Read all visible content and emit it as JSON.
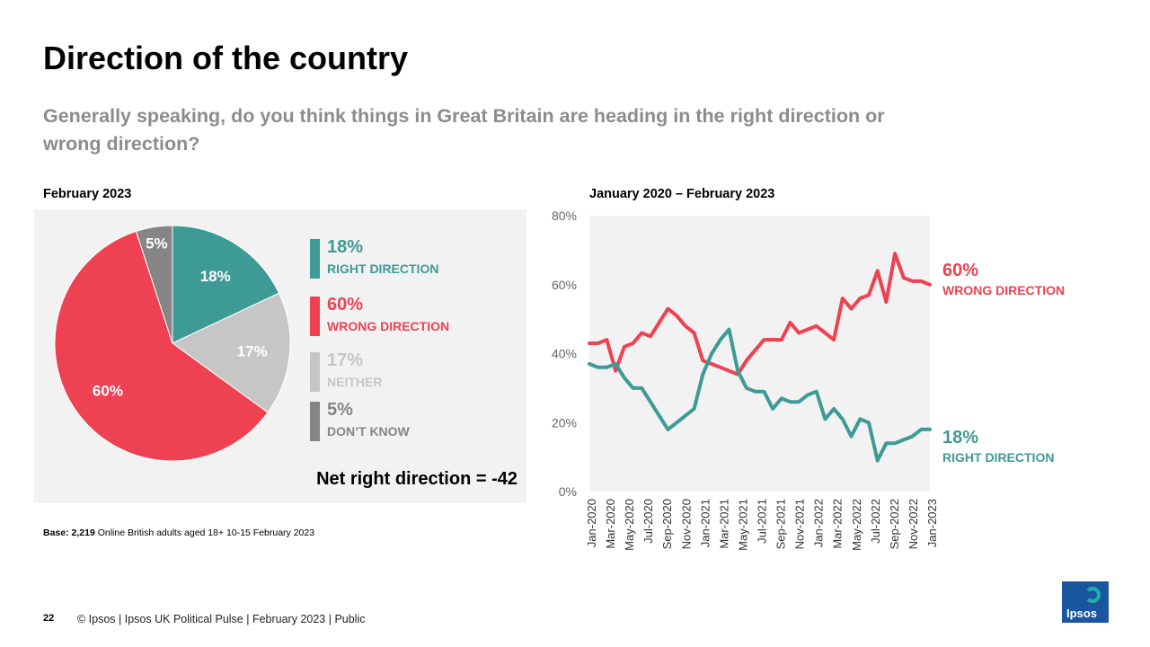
{
  "title": "Direction of the country",
  "subtitle": "Generally speaking, do you think things in Great Britain are heading in the right direction or wrong direction?",
  "colors": {
    "right": "#3e9a96",
    "wrong": "#ee4151",
    "neither": "#c6c6c6",
    "dont_know": "#858585"
  },
  "chart_data": [
    {
      "type": "pie",
      "title": "February 2023",
      "slices": [
        {
          "key": "right",
          "pct_label": "18%",
          "label": "RIGHT DIRECTION",
          "value": 18
        },
        {
          "key": "neither",
          "pct_label": "17%",
          "label": "NEITHER",
          "value": 17
        },
        {
          "key": "wrong",
          "pct_label": "60%",
          "label": "WRONG DIRECTION",
          "value": 60
        },
        {
          "key": "dont_know",
          "pct_label": "5%",
          "label": "DON’T KNOW",
          "value": 5
        }
      ],
      "legend_placement": "right"
    },
    {
      "type": "line",
      "title": "January 2020 – February 2023",
      "ylim": [
        0,
        80
      ],
      "y_ticks": [
        "0%",
        "20%",
        "40%",
        "60%",
        "80%"
      ],
      "x_tick_labels": [
        "Jan-2020",
        "Mar-2020",
        "May-2020",
        "Jul-2020",
        "Sep-2020",
        "Nov-2020",
        "Jan-2021",
        "Mar-2021",
        "May-2021",
        "Jul-2021",
        "Sep-2021",
        "Nov-2021",
        "Jan-2022",
        "Mar-2022",
        "May-2022",
        "Jul-2022",
        "Sep-2022",
        "Nov-2022",
        "Jan-2023"
      ],
      "series": [
        {
          "key": "wrong",
          "end_pct": "60%",
          "end_label": "WRONG DIRECTION",
          "values": [
            43,
            43,
            44,
            35,
            42,
            43,
            46,
            45,
            49,
            53,
            51,
            48,
            46,
            38,
            37,
            36,
            35,
            34,
            38,
            41,
            44,
            44,
            44,
            49,
            46,
            47,
            48,
            46,
            44,
            56,
            53,
            56,
            57,
            64,
            55,
            69,
            62,
            61,
            61,
            60
          ]
        },
        {
          "key": "right",
          "end_pct": "18%",
          "end_label": "RIGHT DIRECTION",
          "values": [
            37,
            36,
            36,
            37,
            33,
            30,
            30,
            26,
            22,
            18,
            20,
            22,
            24,
            34,
            40,
            44,
            47,
            35,
            30,
            29,
            29,
            24,
            27,
            26,
            26,
            28,
            29,
            21,
            24,
            21,
            16,
            21,
            20,
            9,
            14,
            14,
            15,
            16,
            18,
            18
          ]
        }
      ]
    }
  ],
  "net_text": "Net right direction = -42",
  "base": {
    "bold": "Base: 2,219",
    "text": " Online British adults aged 18+ 10-15 February 2023"
  },
  "footer": {
    "page": "22",
    "text": "© Ipsos |  Ipsos UK Political Pulse | February 2023 | Public"
  },
  "logo": {
    "text": "Ipsos",
    "icon": "ipsos-logo-icon"
  }
}
